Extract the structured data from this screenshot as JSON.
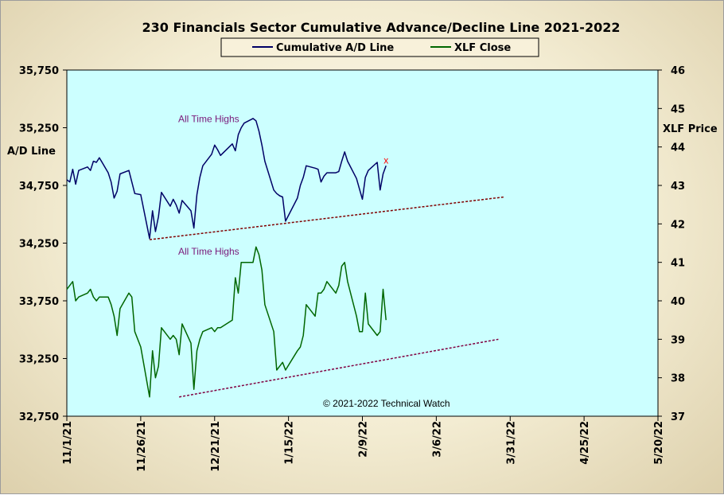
{
  "chart_data": {
    "type": "line",
    "title": "230 Financials  Sector Cumulative  Advance/Decline  Line 2021-2022",
    "y_left_label": "A/D Line",
    "y_right_label": "XLF Price",
    "y_left_range": [
      32750,
      35750
    ],
    "y_right_range": [
      37,
      46
    ],
    "y_left_ticks": [
      "35,750",
      "35,250",
      "34,750",
      "34,250",
      "33,750",
      "33,250",
      "32,750"
    ],
    "y_right_ticks": [
      "46",
      "45",
      "44",
      "43",
      "42",
      "41",
      "40",
      "39",
      "38",
      "37"
    ],
    "x_ticks": [
      "11/1/21",
      "11/26/21",
      "12/21/21",
      "1/15/22",
      "2/9/22",
      "3/6/22",
      "3/31/22",
      "4/25/22",
      "5/20/22"
    ],
    "x_range": [
      "2021-11-01",
      "2022-05-20"
    ],
    "grid": false,
    "legend_position": "top-center",
    "plot_background": "#ccffff",
    "series": [
      {
        "name": "Cumulative A/D Line",
        "axis": "left",
        "color": "#000066",
        "x": [
          "2021-11-01",
          "2021-11-02",
          "2021-11-03",
          "2021-11-04",
          "2021-11-05",
          "2021-11-08",
          "2021-11-09",
          "2021-11-10",
          "2021-11-11",
          "2021-11-12",
          "2021-11-15",
          "2021-11-16",
          "2021-11-17",
          "2021-11-18",
          "2021-11-19",
          "2021-11-22",
          "2021-11-23",
          "2021-11-24",
          "2021-11-26",
          "2021-11-29",
          "2021-11-30",
          "2021-12-01",
          "2021-12-02",
          "2021-12-03",
          "2021-12-06",
          "2021-12-07",
          "2021-12-08",
          "2021-12-09",
          "2021-12-10",
          "2021-12-13",
          "2021-12-14",
          "2021-12-15",
          "2021-12-16",
          "2021-12-17",
          "2021-12-20",
          "2021-12-21",
          "2021-12-22",
          "2021-12-23",
          "2021-12-27",
          "2021-12-28",
          "2021-12-29",
          "2021-12-30",
          "2021-12-31",
          "2022-01-03",
          "2022-01-04",
          "2022-01-05",
          "2022-01-06",
          "2022-01-07",
          "2022-01-10",
          "2022-01-11",
          "2022-01-12",
          "2022-01-13",
          "2022-01-14",
          "2022-01-18",
          "2022-01-19",
          "2022-01-20",
          "2022-01-21",
          "2022-01-24",
          "2022-01-25",
          "2022-01-26",
          "2022-01-27",
          "2022-01-28",
          "2022-01-31",
          "2022-02-01",
          "2022-02-02",
          "2022-02-03",
          "2022-02-04",
          "2022-02-07",
          "2022-02-08",
          "2022-02-09",
          "2022-02-10",
          "2022-02-11",
          "2022-02-14",
          "2022-02-15",
          "2022-02-16",
          "2022-02-17"
        ],
        "values": [
          34800,
          34780,
          34890,
          34760,
          34880,
          34910,
          34880,
          34960,
          34950,
          34990,
          34860,
          34780,
          34640,
          34700,
          34850,
          34880,
          34780,
          34680,
          34670,
          34290,
          34530,
          34350,
          34480,
          34690,
          34570,
          34630,
          34580,
          34510,
          34620,
          34530,
          34380,
          34670,
          34820,
          34920,
          35020,
          35100,
          35060,
          35010,
          35110,
          35050,
          35190,
          35250,
          35290,
          35330,
          35310,
          35220,
          35100,
          34960,
          34710,
          34680,
          34660,
          34650,
          34440,
          34640,
          34750,
          34820,
          34920,
          34900,
          34890,
          34780,
          34830,
          34860,
          34860,
          34870,
          34960,
          35040,
          34960,
          34810,
          34720,
          34630,
          34820,
          34880,
          34950,
          34710,
          34850,
          34920
        ]
      },
      {
        "name": "XLF Close",
        "axis": "right",
        "color": "#006600",
        "x": [
          "2021-11-01",
          "2021-11-02",
          "2021-11-03",
          "2021-11-04",
          "2021-11-05",
          "2021-11-08",
          "2021-11-09",
          "2021-11-10",
          "2021-11-11",
          "2021-11-12",
          "2021-11-15",
          "2021-11-16",
          "2021-11-17",
          "2021-11-18",
          "2021-11-19",
          "2021-11-22",
          "2021-11-23",
          "2021-11-24",
          "2021-11-26",
          "2021-11-29",
          "2021-11-30",
          "2021-12-01",
          "2021-12-02",
          "2021-12-03",
          "2021-12-06",
          "2021-12-07",
          "2021-12-08",
          "2021-12-09",
          "2021-12-10",
          "2021-12-13",
          "2021-12-14",
          "2021-12-15",
          "2021-12-16",
          "2021-12-17",
          "2021-12-20",
          "2021-12-21",
          "2021-12-22",
          "2021-12-23",
          "2021-12-27",
          "2021-12-28",
          "2021-12-29",
          "2021-12-30",
          "2021-12-31",
          "2022-01-03",
          "2022-01-04",
          "2022-01-05",
          "2022-01-06",
          "2022-01-07",
          "2022-01-10",
          "2022-01-11",
          "2022-01-12",
          "2022-01-13",
          "2022-01-14",
          "2022-01-18",
          "2022-01-19",
          "2022-01-20",
          "2022-01-21",
          "2022-01-24",
          "2022-01-25",
          "2022-01-26",
          "2022-01-27",
          "2022-01-28",
          "2022-01-31",
          "2022-02-01",
          "2022-02-02",
          "2022-02-03",
          "2022-02-04",
          "2022-02-07",
          "2022-02-08",
          "2022-02-09",
          "2022-02-10",
          "2022-02-11",
          "2022-02-14",
          "2022-02-15",
          "2022-02-16",
          "2022-02-17"
        ],
        "values": [
          40.3,
          40.4,
          40.5,
          40.0,
          40.1,
          40.2,
          40.3,
          40.1,
          40.0,
          40.1,
          40.1,
          39.9,
          39.6,
          39.1,
          39.8,
          40.2,
          40.1,
          39.2,
          38.8,
          37.5,
          38.7,
          38.0,
          38.3,
          39.3,
          39.0,
          39.1,
          39.0,
          38.6,
          39.4,
          38.9,
          37.7,
          38.7,
          39.0,
          39.2,
          39.3,
          39.2,
          39.3,
          39.3,
          39.5,
          40.6,
          40.2,
          41.0,
          41.0,
          41.0,
          41.4,
          41.2,
          40.8,
          39.9,
          39.2,
          38.2,
          38.3,
          38.4,
          38.2,
          38.7,
          38.8,
          39.1,
          39.9,
          39.6,
          40.2,
          40.2,
          40.3,
          40.5,
          40.2,
          40.4,
          40.9,
          41.0,
          40.5,
          39.6,
          39.2,
          39.2,
          40.2,
          39.4,
          39.1,
          39.2,
          40.3,
          39.5
        ]
      }
    ],
    "trendlines": [
      {
        "axis": "left",
        "color": "#800000",
        "from": [
          "2021-11-29",
          34280
        ],
        "to": [
          "2022-03-29",
          34650
        ]
      },
      {
        "axis": "right",
        "color": "#800040",
        "from": [
          "2021-12-09",
          37.5
        ],
        "to": [
          "2022-03-27",
          39
        ]
      }
    ],
    "annotations": [
      {
        "text": "All Time Highs",
        "axis": "left",
        "x": "2021-12-19",
        "y": 35300
      },
      {
        "text": "All Time Highs",
        "axis": "right",
        "x": "2021-12-19",
        "y": 41.2
      },
      {
        "text": "x",
        "axis": "left",
        "x": "2022-02-17",
        "y": 34940,
        "color": "#ff0000"
      }
    ],
    "copyright": "© 2021-2022  Technical Watch"
  }
}
